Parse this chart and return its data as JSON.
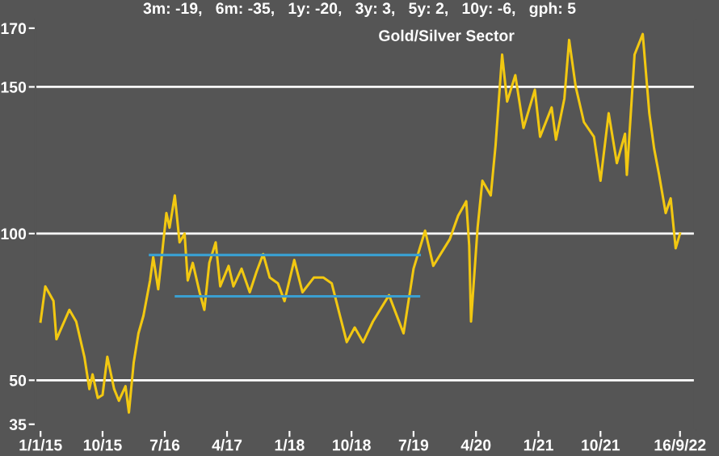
{
  "chart_data": {
    "type": "line",
    "title": "3m: -19,   6m: -35,   1y: -20,   3y: 3,   5y: 2,   10y: -6,   gph: 5",
    "subtitle": "Gold/Silver Sector",
    "series": [
      {
        "color": "#f2c811",
        "x": [
          "2015-01-01",
          "2015-01-22",
          "2015-02-27",
          "2015-03-12",
          "2015-05-08",
          "2015-06-07",
          "2015-07-13",
          "2015-08-04",
          "2015-08-18",
          "2015-09-10",
          "2015-10-01",
          "2015-10-22",
          "2015-11-21",
          "2015-12-12",
          "2016-01-10",
          "2016-01-25",
          "2016-02-15",
          "2016-03-07",
          "2016-03-29",
          "2016-04-27",
          "2016-05-11",
          "2016-06-02",
          "2016-06-16",
          "2016-07-08",
          "2016-07-22",
          "2016-08-14",
          "2016-09-04",
          "2016-09-26",
          "2016-10-10",
          "2016-11-01",
          "2016-12-01",
          "2016-12-22",
          "2017-01-13",
          "2017-02-10",
          "2017-03-02",
          "2017-04-08",
          "2017-04-29",
          "2017-06-04",
          "2017-07-10",
          "2017-08-09",
          "2017-09-07",
          "2017-10-06",
          "2017-11-11",
          "2017-12-10",
          "2018-01-22",
          "2018-02-27",
          "2018-04-18",
          "2018-05-30",
          "2018-07-06",
          "2018-08-11",
          "2018-09-10",
          "2018-10-15",
          "2018-11-21",
          "2019-01-03",
          "2019-03-15",
          "2019-05-18",
          "2019-07-01",
          "2019-08-21",
          "2019-09-26",
          "2019-12-07",
          "2020-01-13",
          "2020-02-18",
          "2020-03-02",
          "2020-03-10",
          "2020-04-08",
          "2020-04-29",
          "2020-06-05",
          "2020-06-26",
          "2020-07-25",
          "2020-08-16",
          "2020-09-21",
          "2020-10-27",
          "2020-12-16",
          "2021-01-08",
          "2021-02-28",
          "2021-03-19",
          "2021-04-25",
          "2021-05-16",
          "2021-06-14",
          "2021-07-20",
          "2021-09-02",
          "2021-10-01",
          "2021-11-06",
          "2021-12-12",
          "2022-01-17",
          "2022-01-25",
          "2022-02-28",
          "2022-04-05",
          "2022-05-04",
          "2022-05-25",
          "2022-06-16",
          "2022-07-15",
          "2022-08-06",
          "2022-08-28",
          "2022-09-16"
        ],
        "values": [
          70,
          82,
          77,
          64,
          74,
          70,
          58,
          47,
          52,
          44,
          45,
          58,
          47,
          43,
          48,
          39,
          56,
          66,
          72,
          84,
          92,
          81,
          91,
          107,
          102,
          113,
          97,
          100,
          84,
          90,
          80,
          74,
          90,
          97,
          82,
          89,
          82,
          88,
          80,
          87,
          93,
          85,
          83,
          77,
          91,
          80,
          85,
          85,
          83,
          72,
          63,
          68,
          63,
          70,
          79,
          66,
          88,
          101,
          89,
          98,
          106,
          111,
          96,
          70,
          102,
          118,
          113,
          130,
          161,
          145,
          154,
          136,
          149,
          133,
          143,
          132,
          146,
          166,
          150,
          138,
          133,
          118,
          141,
          124,
          134,
          120,
          161,
          168,
          141,
          129,
          120,
          107,
          112,
          95,
          100
        ]
      },
      {
        "color": "#3a9fd0",
        "x": [
          "2016-04-27",
          "2019-07-28"
        ],
        "values": [
          92.7,
          92.7
        ]
      },
      {
        "color": "#3a9fd0",
        "x": [
          "2016-08-19",
          "2019-07-25"
        ],
        "values": [
          78.6,
          78.6
        ]
      }
    ],
    "xlim": [
      "2014-12-10",
      "2022-11-20"
    ],
    "xticks": [
      {
        "value": "2015-01-01",
        "label": "1/1/15"
      },
      {
        "value": "2015-10-01",
        "label": "10/15"
      },
      {
        "value": "2016-07-01",
        "label": "7/16"
      },
      {
        "value": "2017-04-01",
        "label": "4/17"
      },
      {
        "value": "2018-01-01",
        "label": "1/18"
      },
      {
        "value": "2018-10-01",
        "label": "10/18"
      },
      {
        "value": "2019-07-01",
        "label": "7/19"
      },
      {
        "value": "2020-04-01",
        "label": "4/20"
      },
      {
        "value": "2021-01-01",
        "label": "1/21"
      },
      {
        "value": "2021-10-01",
        "label": "10/21"
      },
      {
        "value": "2022-09-16",
        "label": "16/9/22"
      }
    ],
    "ylim": [
      33,
      173
    ],
    "yticks": [
      35,
      50,
      100,
      150,
      170
    ],
    "ref_lines": [
      {
        "axis": "y",
        "value": 50,
        "color": "#ffffff"
      },
      {
        "axis": "y",
        "value": 100,
        "color": "#ffffff"
      },
      {
        "axis": "y",
        "value": 150,
        "color": "#ffffff"
      }
    ],
    "grid": false,
    "legend": false
  }
}
